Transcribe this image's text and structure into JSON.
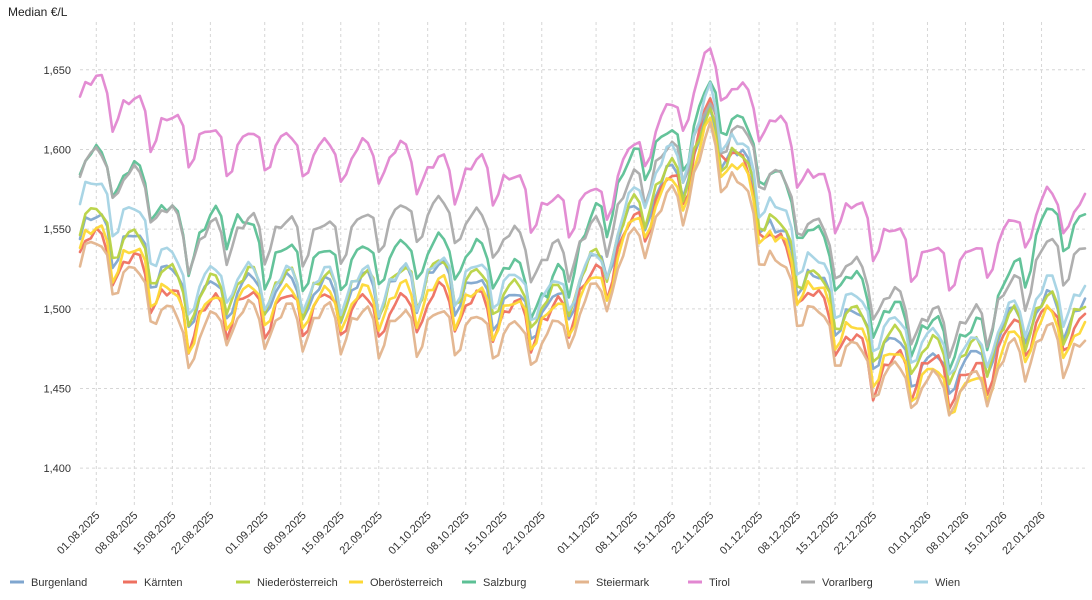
{
  "chart_data": {
    "type": "line",
    "title": "",
    "xlabel": "",
    "ylabel": "Median €/L",
    "ylim": [
      1375,
      1680
    ],
    "grid": true,
    "legend_position": "bottom",
    "y_ticks": [
      {
        "value": 1400,
        "label": "1,400"
      },
      {
        "value": 1450,
        "label": "1,450"
      },
      {
        "value": 1500,
        "label": "1,500"
      },
      {
        "value": 1550,
        "label": "1,550"
      },
      {
        "value": 1600,
        "label": "1,600"
      },
      {
        "value": 1650,
        "label": "1,650"
      }
    ],
    "x_start_day": 0,
    "x_end_day": 185,
    "x_ticks": [
      {
        "day": 3,
        "label": "01.08.2025"
      },
      {
        "day": 10,
        "label": "08.08.2025"
      },
      {
        "day": 17,
        "label": "15.08.2025"
      },
      {
        "day": 24,
        "label": "22.08.2025"
      },
      {
        "day": 34,
        "label": "01.09.2025"
      },
      {
        "day": 41,
        "label": "08.09.2025"
      },
      {
        "day": 48,
        "label": "15.09.2025"
      },
      {
        "day": 55,
        "label": "22.09.2025"
      },
      {
        "day": 64,
        "label": "01.10.2025"
      },
      {
        "day": 71,
        "label": "08.10.2025"
      },
      {
        "day": 78,
        "label": "15.10.2025"
      },
      {
        "day": 85,
        "label": "22.10.2025"
      },
      {
        "day": 95,
        "label": "01.11.2025"
      },
      {
        "day": 102,
        "label": "08.11.2025"
      },
      {
        "day": 109,
        "label": "15.11.2025"
      },
      {
        "day": 116,
        "label": "22.11.2025"
      },
      {
        "day": 125,
        "label": "01.12.2025"
      },
      {
        "day": 132,
        "label": "08.12.2025"
      },
      {
        "day": 139,
        "label": "15.12.2025"
      },
      {
        "day": 146,
        "label": "22.12.2025"
      },
      {
        "day": 156,
        "label": "01.01.2026"
      },
      {
        "day": 163,
        "label": "08.01.2026"
      },
      {
        "day": 170,
        "label": "15.01.2026"
      },
      {
        "day": 177,
        "label": "22.01.2026"
      }
    ],
    "week_shape": [
      -7,
      1,
      3,
      6,
      6,
      2,
      -11
    ],
    "anchor_days": [
      0,
      12,
      20,
      28,
      34,
      46,
      58,
      66,
      76,
      86,
      96,
      104,
      112,
      116,
      122,
      128,
      136,
      146,
      156,
      164,
      172,
      178,
      185
    ],
    "series": [
      {
        "name": "Burgenland",
        "color": "#7fa6cf",
        "values": [
          1555,
          1535,
          1505,
          1510,
          1512,
          1508,
          1515,
          1520,
          1505,
          1495,
          1530,
          1565,
          1590,
          1615,
          1590,
          1545,
          1512,
          1480,
          1462,
          1462,
          1492,
          1500,
          1496
        ]
      },
      {
        "name": "Kärnten",
        "color": "#ee7060",
        "values": [
          1545,
          1520,
          1492,
          1502,
          1500,
          1500,
          1497,
          1505,
          1498,
          1490,
          1520,
          1560,
          1585,
          1625,
          1585,
          1540,
          1500,
          1462,
          1462,
          1452,
          1485,
          1492,
          1486
        ]
      },
      {
        "name": "Niederösterreich",
        "color": "#b8d343",
        "values": [
          1560,
          1535,
          1505,
          1515,
          1515,
          1512,
          1515,
          1522,
          1512,
          1500,
          1530,
          1570,
          1590,
          1615,
          1588,
          1550,
          1512,
          1482,
          1472,
          1468,
          1490,
          1500,
          1494
        ]
      },
      {
        "name": "Oberösterreich",
        "color": "#fdd835",
        "values": [
          1548,
          1525,
          1490,
          1505,
          1505,
          1502,
          1505,
          1510,
          1500,
          1490,
          1515,
          1560,
          1580,
          1610,
          1580,
          1540,
          1505,
          1470,
          1455,
          1445,
          1478,
          1490,
          1480
        ]
      },
      {
        "name": "Salzburg",
        "color": "#5cc095",
        "values": [
          1595,
          1578,
          1540,
          1560,
          1532,
          1528,
          1532,
          1536,
          1530,
          1505,
          1560,
          1600,
          1605,
          1635,
          1610,
          1580,
          1540,
          1500,
          1485,
          1478,
          1520,
          1555,
          1550
        ]
      },
      {
        "name": "Steiermark",
        "color": "#e3b48d",
        "values": [
          1540,
          1512,
          1478,
          1495,
          1492,
          1492,
          1488,
          1490,
          1485,
          1478,
          1510,
          1550,
          1575,
          1605,
          1570,
          1525,
          1490,
          1460,
          1450,
          1448,
          1470,
          1480,
          1472
        ]
      },
      {
        "name": "Tirol",
        "color": "#e287d1",
        "values": [
          1642,
          1620,
          1608,
          1600,
          1603,
          1595,
          1595,
          1585,
          1585,
          1560,
          1568,
          1605,
          1630,
          1655,
          1630,
          1615,
          1575,
          1550,
          1530,
          1528,
          1548,
          1565,
          1560
        ]
      },
      {
        "name": "Vorarlberg",
        "color": "#ababab",
        "values": [
          1595,
          1575,
          1540,
          1548,
          1548,
          1545,
          1555,
          1560,
          1548,
          1528,
          1548,
          1585,
          1600,
          1620,
          1605,
          1580,
          1545,
          1510,
          1490,
          1488,
          1510,
          1535,
          1530
        ]
      },
      {
        "name": "Wien",
        "color": "#a4d3e4",
        "values": [
          1578,
          1550,
          1512,
          1520,
          1515,
          1515,
          1515,
          1522,
          1518,
          1505,
          1528,
          1580,
          1600,
          1630,
          1595,
          1560,
          1522,
          1490,
          1478,
          1470,
          1495,
          1510,
          1505
        ]
      }
    ]
  }
}
